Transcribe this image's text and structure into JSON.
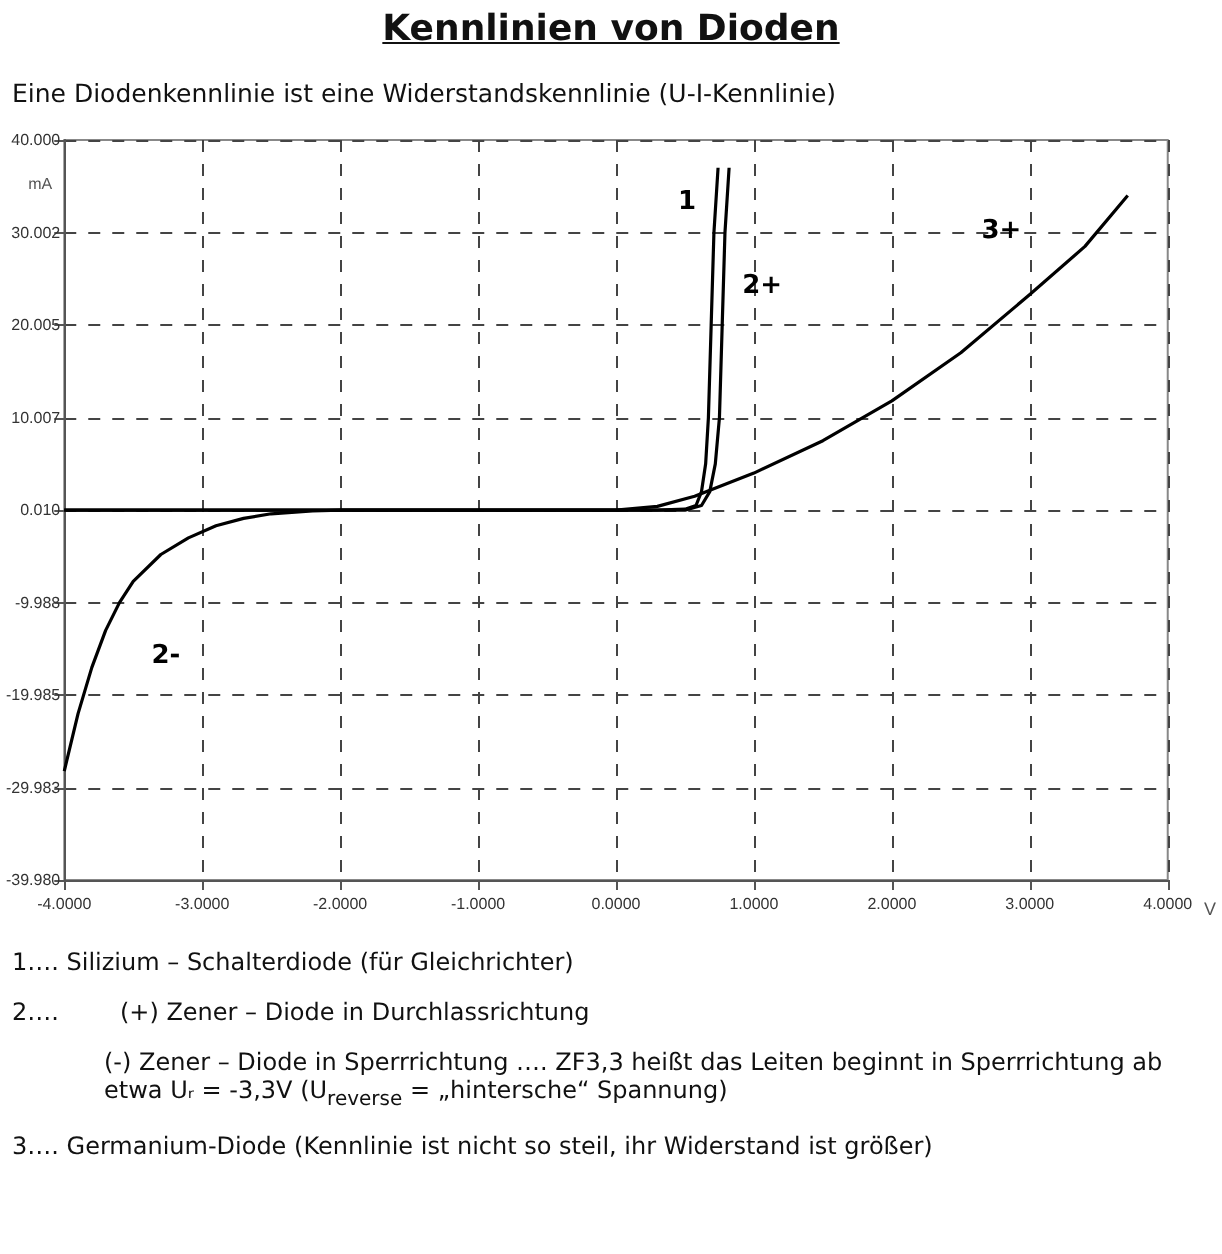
{
  "chart_data": {
    "type": "line",
    "title": "Kennlinien von Dioden",
    "subtitle": "Eine Diodenkennlinie ist eine Widerstandskennlinie (U-I-Kennlinie)",
    "xlabel": "V",
    "ylabel": "mA",
    "series": [
      {
        "color": "#000000",
        "x": [
          -4,
          0,
          0.3,
          0.5,
          0.58,
          0.62,
          0.65,
          0.67,
          0.69,
          0.71,
          0.74
        ],
        "values": [
          0,
          0,
          0,
          0.1,
          0.5,
          2,
          5,
          10,
          20,
          30,
          37
        ]
      },
      {
        "color": "#000000",
        "x": [
          -4,
          -3.9,
          -3.8,
          -3.7,
          -3.6,
          -3.5,
          -3.3,
          -3.1,
          -2.9,
          -2.7,
          -2.5,
          -2.2,
          -2,
          0,
          0.5,
          0.62,
          0.68,
          0.72,
          0.75,
          0.77,
          0.79,
          0.82
        ],
        "values": [
          -28.2,
          -22,
          -17,
          -13,
          -10,
          -7.7,
          -4.8,
          -3,
          -1.7,
          -0.9,
          -0.4,
          -0.1,
          0,
          0,
          0,
          0.5,
          2,
          5,
          10,
          20,
          30,
          37
        ]
      },
      {
        "color": "#000000",
        "x": [
          -4,
          0,
          0.3,
          0.57,
          1,
          1.5,
          2,
          2.5,
          3,
          3.4,
          3.71
        ],
        "values": [
          0,
          0,
          0.4,
          1.5,
          4,
          7.5,
          11.8,
          17,
          23.3,
          28.5,
          34
        ]
      }
    ],
    "xlim": [
      -4,
      4
    ],
    "xticks": [
      {
        "value": -4,
        "label": "-4.0000"
      },
      {
        "value": -3,
        "label": "-3.0000"
      },
      {
        "value": -2,
        "label": "-2.0000"
      },
      {
        "value": -1,
        "label": "-1.0000"
      },
      {
        "value": 0,
        "label": "0.0000"
      },
      {
        "value": 1,
        "label": "1.0000"
      },
      {
        "value": 2,
        "label": "2.0000"
      },
      {
        "value": 3,
        "label": "3.0000"
      },
      {
        "value": 4,
        "label": "4.0000"
      }
    ],
    "ylim": [
      -39.98,
      40
    ],
    "yticks": [
      {
        "value": -39.98,
        "label": "-39.980"
      },
      -29.983,
      -19.985,
      -9.988,
      {
        "value": 0.01,
        "label": "0.010"
      },
      10.007,
      20.005,
      30.002,
      {
        "value": 40,
        "label": "40.000"
      }
    ],
    "grid": true,
    "marker": "none",
    "line_style": "solid",
    "annotations": [
      {
        "text": "1",
        "x": 0.71,
        "y": 30
      },
      {
        "text": "2+",
        "x": 0.77,
        "y": 20
      },
      {
        "text": "3+",
        "x": 3.2,
        "y": 25.9
      },
      {
        "text": "2-",
        "x": -3.6,
        "y": -10
      },
      "1…. Silizium – Schalterdiode (für Gleichrichter)",
      "2….        (+) Zener – Diode in Durchlassrichtung",
      "(-) Zener – Diode in Sperrrichtung …. ZF3,3 heißt das Leiten beginnt in Sperrrichtung ab etwa Uᵣ = -3,3V (U$_{reverse}$ = „hintersche“ Spannung)",
      "3…. Germanium-Diode (Kennlinie ist nicht so steil, ihr Widerstand ist größer)"
    ]
  }
}
